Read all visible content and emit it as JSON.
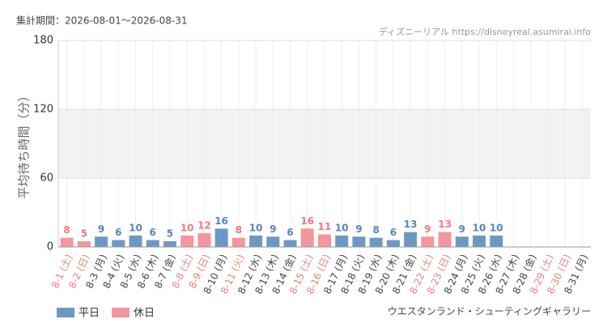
{
  "header": {
    "period": "集計期間：2026-08-01～2026-08-31",
    "source": "ディズニーリアル https://disneyreal.asumirai.info",
    "attraction": "ウエスタンランド・シューティングギャラリー"
  },
  "chart_data": {
    "type": "bar",
    "y_label": "平均待ち時間（分）",
    "categories": [
      "8-1 (土)",
      "8-2 (日)",
      "8-3 (月)",
      "8-4 (火)",
      "8-5 (水)",
      "8-6 (木)",
      "8-7 (金)",
      "8-8 (土)",
      "8-9 (日)",
      "8-10 (月)",
      "8-11 (火)",
      "8-12 (水)",
      "8-13 (木)",
      "8-14 (金)",
      "8-15 (土)",
      "8-16 (日)",
      "8-17 (月)",
      "8-18 (火)",
      "8-19 (水)",
      "8-20 (木)",
      "8-21 (金)",
      "8-22 (土)",
      "8-23 (日)",
      "8-24 (月)",
      "8-25 (火)",
      "8-26 (水)",
      "8-27 (木)",
      "8-28 (金)",
      "8-29 (土)",
      "8-30 (日)",
      "8-31 (月)"
    ],
    "category_label_colors": [
      "#f08080",
      "#f08080",
      "#444",
      "#444",
      "#444",
      "#444",
      "#444",
      "#f08080",
      "#f08080",
      "#444",
      "#f08080",
      "#444",
      "#444",
      "#444",
      "#f08080",
      "#f08080",
      "#444",
      "#444",
      "#444",
      "#444",
      "#444",
      "#f08080",
      "#f08080",
      "#444",
      "#444",
      "#444",
      "#444",
      "#444",
      "#f08080",
      "#f08080",
      "#444"
    ],
    "series": [
      {
        "name": "平日",
        "color": "#6f97c4",
        "label_color": "#5b86b8",
        "values": [
          null,
          null,
          9,
          6,
          10,
          6,
          5,
          null,
          null,
          16,
          null,
          10,
          9,
          6,
          null,
          null,
          10,
          9,
          8,
          6,
          13,
          null,
          null,
          9,
          10,
          10,
          null,
          null,
          null,
          null,
          null
        ]
      },
      {
        "name": "休日",
        "color": "#f4969b",
        "label_color": "#f07a80",
        "values": [
          8,
          5,
          null,
          null,
          null,
          null,
          null,
          10,
          12,
          null,
          8,
          null,
          null,
          null,
          16,
          11,
          null,
          null,
          null,
          null,
          null,
          9,
          13,
          null,
          null,
          null,
          null,
          null,
          null,
          null,
          null
        ]
      }
    ],
    "ylim": [
      0,
      180
    ],
    "yticks": [
      0,
      60,
      120,
      180
    ],
    "grid": true
  }
}
